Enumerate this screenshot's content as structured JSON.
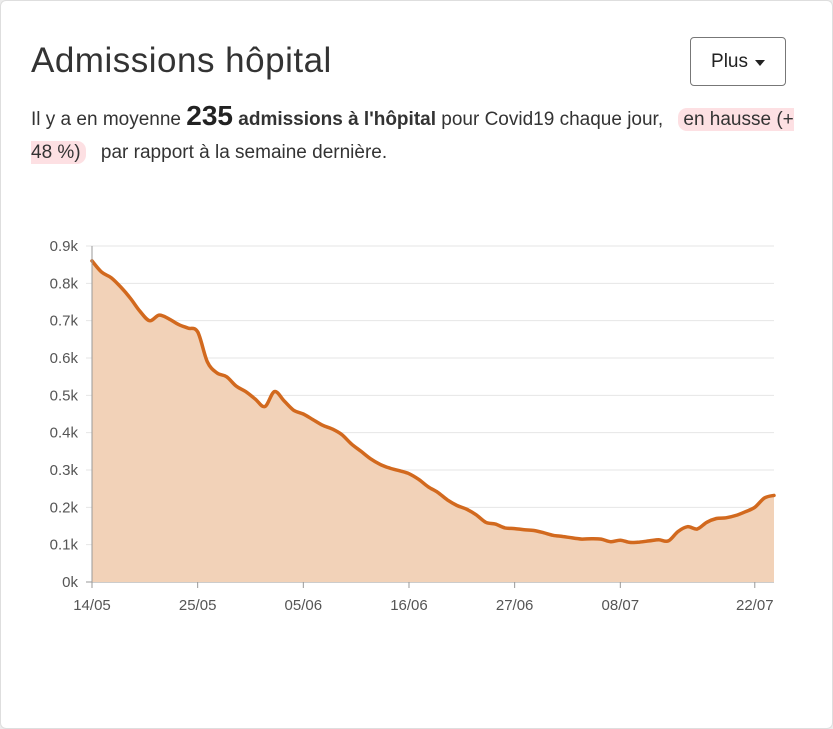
{
  "header": {
    "title": "Admissions hôpital",
    "more_button": "Plus"
  },
  "summary": {
    "prefix": "Il y a en moyenne",
    "value": "235",
    "bold_text": "admissions à l'hôpital",
    "middle": "pour Covid19 chaque jour,",
    "trend": "en hausse (+ 48 %)",
    "suffix": "par rapport à la semaine dernière."
  },
  "colors": {
    "line": "#d2691e",
    "area": "#f2d2b8",
    "grid": "#e6e6e6",
    "trend_highlight": "#fde0e3"
  },
  "chart_data": {
    "type": "area",
    "x_tick_labels": [
      "14/05",
      "25/05",
      "05/06",
      "16/06",
      "27/06",
      "08/07",
      "22/07"
    ],
    "y_tick_labels": [
      "0k",
      "0.1k",
      "0.2k",
      "0.3k",
      "0.4k",
      "0.5k",
      "0.6k",
      "0.7k",
      "0.8k",
      "0.9k"
    ],
    "ylim": [
      0,
      900
    ],
    "x_range": [
      "2020-05-14",
      "2020-07-22"
    ],
    "grid": true,
    "series": [
      {
        "values": [
          [
            0,
            860
          ],
          [
            1,
            830
          ],
          [
            2,
            815
          ],
          [
            3,
            790
          ],
          [
            4,
            760
          ],
          [
            5,
            725
          ],
          [
            6,
            700
          ],
          [
            7,
            715
          ],
          [
            8,
            705
          ],
          [
            9,
            690
          ],
          [
            10,
            680
          ],
          [
            11,
            670
          ],
          [
            12,
            590
          ],
          [
            13,
            560
          ],
          [
            14,
            550
          ],
          [
            15,
            525
          ],
          [
            16,
            510
          ],
          [
            17,
            490
          ],
          [
            18,
            470
          ],
          [
            19,
            510
          ],
          [
            20,
            485
          ],
          [
            21,
            460
          ],
          [
            22,
            450
          ],
          [
            23,
            435
          ],
          [
            24,
            420
          ],
          [
            25,
            410
          ],
          [
            26,
            395
          ],
          [
            27,
            370
          ],
          [
            28,
            350
          ],
          [
            29,
            330
          ],
          [
            30,
            315
          ],
          [
            31,
            305
          ],
          [
            32,
            298
          ],
          [
            33,
            290
          ],
          [
            34,
            275
          ],
          [
            35,
            255
          ],
          [
            36,
            240
          ],
          [
            37,
            220
          ],
          [
            38,
            205
          ],
          [
            39,
            195
          ],
          [
            40,
            180
          ],
          [
            41,
            160
          ],
          [
            42,
            155
          ],
          [
            43,
            145
          ],
          [
            44,
            143
          ],
          [
            45,
            140
          ],
          [
            46,
            138
          ],
          [
            47,
            132
          ],
          [
            48,
            125
          ],
          [
            49,
            122
          ],
          [
            50,
            118
          ],
          [
            51,
            115
          ],
          [
            52,
            116
          ],
          [
            53,
            115
          ],
          [
            54,
            108
          ],
          [
            55,
            112
          ],
          [
            56,
            106
          ],
          [
            57,
            107
          ],
          [
            58,
            110
          ],
          [
            59,
            113
          ],
          [
            60,
            110
          ],
          [
            61,
            135
          ],
          [
            62,
            148
          ],
          [
            63,
            142
          ],
          [
            64,
            160
          ],
          [
            65,
            170
          ],
          [
            66,
            172
          ],
          [
            67,
            178
          ],
          [
            68,
            188
          ],
          [
            69,
            200
          ],
          [
            70,
            225
          ],
          [
            71,
            232
          ]
        ]
      }
    ]
  }
}
